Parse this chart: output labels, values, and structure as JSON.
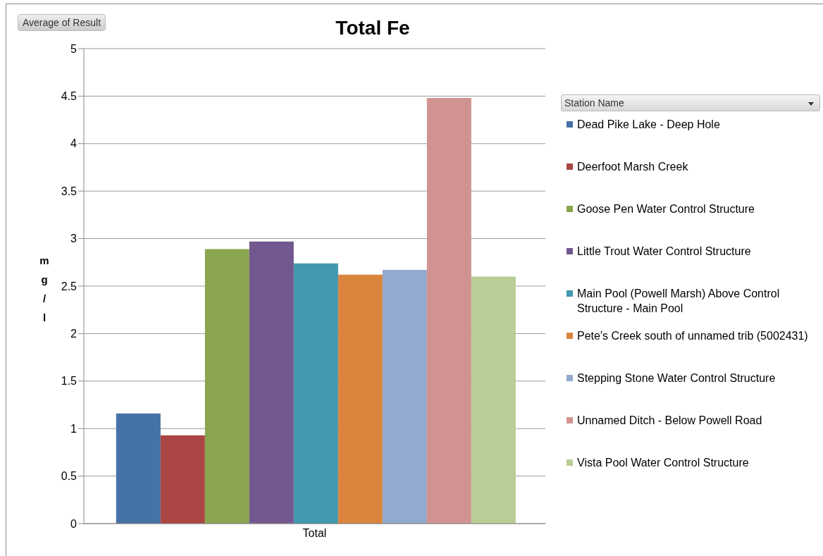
{
  "chart_data": {
    "type": "bar",
    "title": "Total Fe",
    "ylabel": "mg/l",
    "legend_title": "Station Name",
    "annotations": [
      "Average of Result"
    ],
    "categories": [
      "Total"
    ],
    "series": [
      {
        "name": "Dead Pike Lake - Deep Hole",
        "color": "#4572a7",
        "values": [
          1.16
        ]
      },
      {
        "name": "Deerfoot Marsh Creek",
        "color": "#aa4643",
        "values": [
          0.93
        ]
      },
      {
        "name": "Goose Pen Water Control Structure",
        "color": "#89a54e",
        "values": [
          2.89
        ]
      },
      {
        "name": "Little Trout Water Control Structure",
        "color": "#71588f",
        "values": [
          2.97
        ]
      },
      {
        "name": "Main Pool (Powell Marsh) Above Control Structure - Main Pool",
        "color": "#4198af",
        "values": [
          2.74
        ]
      },
      {
        "name": "Pete's Creek south of unnamed trib (5002431)",
        "color": "#db843d",
        "values": [
          2.62
        ]
      },
      {
        "name": "Stepping Stone Water Control Structure",
        "color": "#93a9cf",
        "values": [
          2.67
        ]
      },
      {
        "name": "Unnamed Ditch - Below Powell Road",
        "color": "#d19392",
        "values": [
          4.48
        ]
      },
      {
        "name": "Vista Pool Water Control Structure",
        "color": "#b9cd96",
        "values": [
          2.6
        ]
      }
    ],
    "ylim": [
      0,
      5
    ],
    "yticks": [
      0,
      0.5,
      1,
      1.5,
      2,
      2.5,
      3,
      3.5,
      4,
      4.5,
      5
    ],
    "grid": "y",
    "legend": "right"
  }
}
